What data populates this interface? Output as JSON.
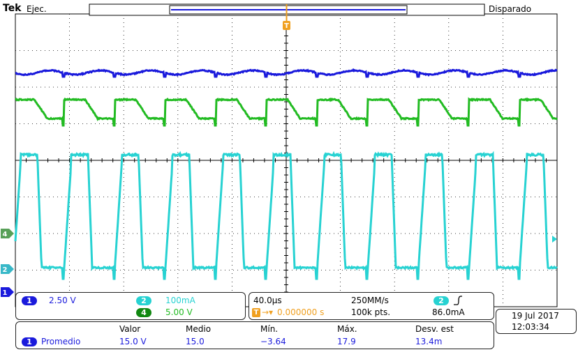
{
  "header": {
    "brand": "Tek",
    "run_state": "Ejec.",
    "trigger_state": "Disparado",
    "trigger_marker": "T"
  },
  "colors": {
    "ch1": "#1a1adc",
    "ch2": "#27d2d2",
    "ch4": "#22bb22",
    "trigger": "#f0a020",
    "grid": "#000000",
    "value_text": "#1a1adc",
    "ch2_text": "#27d2d2",
    "ch4_text": "#22bb22"
  },
  "channel_markers": [
    {
      "label": "4",
      "color": "#58a058"
    },
    {
      "label": "2",
      "color": "#38b8c8"
    },
    {
      "label": "1",
      "color": "#1a1adc"
    }
  ],
  "channels_panel": {
    "ch1": {
      "badge": "1",
      "scale": "2.50 V"
    },
    "ch2": {
      "badge": "2",
      "scale": "100mA"
    },
    "ch4": {
      "badge": "4",
      "scale": "5.00 V"
    }
  },
  "timebase_panel": {
    "time_div": "40.0µs",
    "sample_rate": "250MM/s",
    "trigger_source_badge": "2",
    "trigger_slope_icon": "rising-edge-icon",
    "trigger_position": "0.000000 s",
    "record_length": "100k pts.",
    "trigger_level": "86.0mA"
  },
  "datetime": {
    "date": "19 Jul  2017",
    "time": "12:03:34"
  },
  "measurements": {
    "headers": [
      "Valor",
      "Medio",
      "Mín.",
      "Máx.",
      "Desv. est"
    ],
    "row": {
      "badge": "1",
      "label": "Promedio",
      "values": [
        "15.0 V",
        "15.0",
        "−3.64",
        "17.9",
        "13.4m"
      ]
    }
  }
}
